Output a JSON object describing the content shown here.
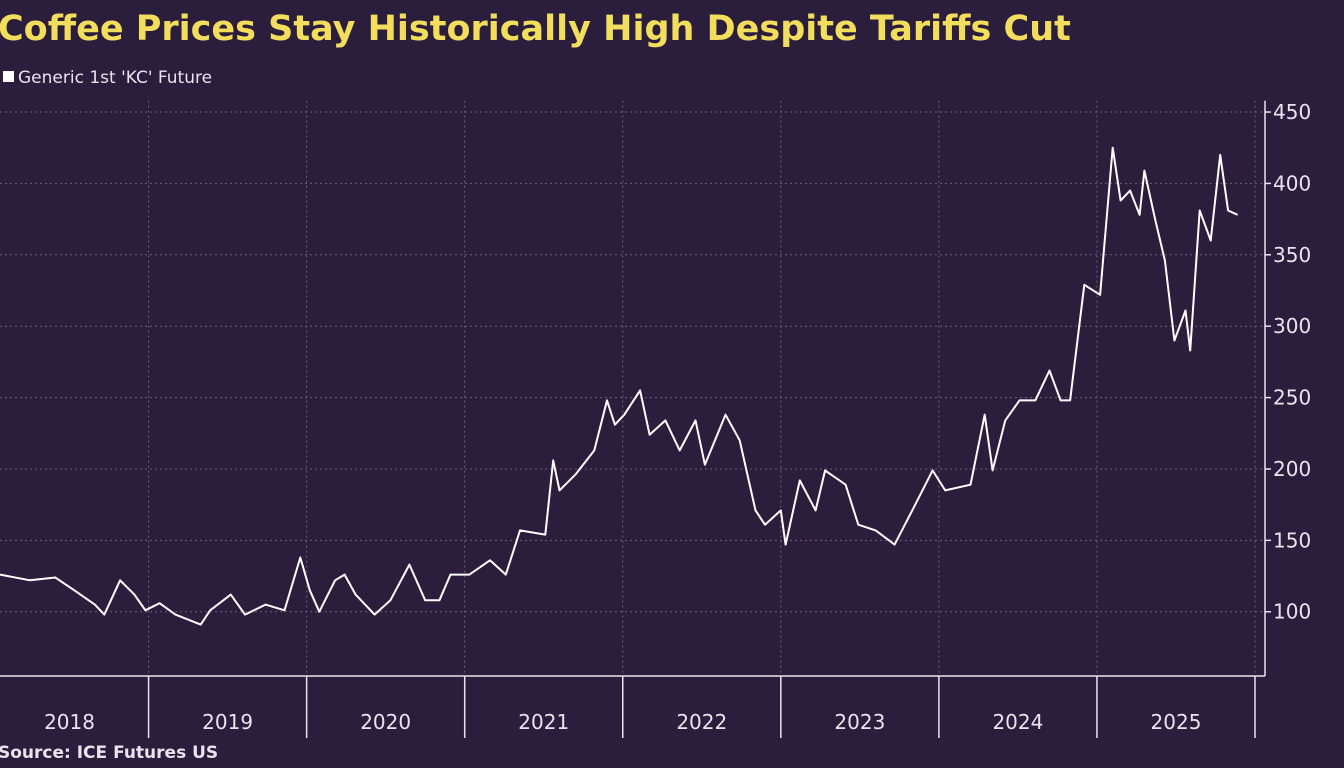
{
  "chart_data": {
    "type": "line",
    "title": "Coffee Prices Stay Historically High Despite Tariffs Cut",
    "source": "Source: ICE Futures US",
    "x": [
      2018.06,
      2018.25,
      2018.41,
      2018.53,
      2018.66,
      2018.72,
      2018.82,
      2018.91,
      2018.98,
      2019.07,
      2019.17,
      2019.33,
      2019.39,
      2019.52,
      2019.61,
      2019.74,
      2019.86,
      2019.96,
      2020.02,
      2020.08,
      2020.18,
      2020.24,
      2020.31,
      2020.43,
      2020.53,
      2020.65,
      2020.75,
      2020.84,
      2020.91,
      2021.03,
      2021.16,
      2021.26,
      2021.35,
      2021.51,
      2021.56,
      2021.6,
      2021.7,
      2021.82,
      2021.9,
      2021.95,
      2022.01,
      2022.11,
      2022.17,
      2022.27,
      2022.36,
      2022.46,
      2022.52,
      2022.65,
      2022.74,
      2022.84,
      2022.9,
      2023.0,
      2023.03,
      2023.12,
      2023.22,
      2023.28,
      2023.41,
      2023.49,
      2023.6,
      2023.72,
      2023.85,
      2023.96,
      2024.04,
      2024.2,
      2024.29,
      2024.34,
      2024.42,
      2024.51,
      2024.61,
      2024.7,
      2024.77,
      2024.83,
      2024.92,
      2025.02,
      2025.1,
      2025.15,
      2025.21,
      2025.27,
      2025.3,
      2025.37,
      2025.43,
      2025.49,
      2025.56,
      2025.59,
      2025.65,
      2025.72,
      2025.78,
      2025.83,
      2025.89
    ],
    "series": [
      {
        "name": "Generic 1st 'KC' Future",
        "color": "#ffffff",
        "values": [
          126,
          122,
          124,
          115,
          105,
          98,
          122,
          112,
          101,
          106,
          98,
          91,
          101,
          112,
          98,
          105,
          101,
          138,
          115,
          100,
          122,
          126,
          112,
          98,
          108,
          133,
          108,
          108,
          126,
          126,
          136,
          126,
          157,
          154,
          206,
          185,
          196,
          213,
          248,
          231,
          238,
          255,
          224,
          234,
          213,
          234,
          203,
          238,
          220,
          171,
          161,
          171,
          147,
          192,
          171,
          199,
          189,
          161,
          157,
          147,
          175,
          199,
          185,
          189,
          238,
          199,
          234,
          248,
          248,
          269,
          248,
          248,
          329,
          322,
          425,
          388,
          395,
          378,
          409,
          374,
          346,
          290,
          311,
          283,
          381,
          360,
          420,
          381,
          378
        ]
      }
    ],
    "ylim": [
      55,
      458
    ],
    "yticks": [
      100,
      150,
      200,
      250,
      300,
      350,
      400,
      450
    ],
    "xlim": [
      2018.06,
      2026.0
    ],
    "xticks": [
      {
        "value": 2018.5,
        "label": "2018"
      },
      {
        "value": 2019.5,
        "label": "2019"
      },
      {
        "value": 2020.5,
        "label": "2020"
      },
      {
        "value": 2021.5,
        "label": "2021"
      },
      {
        "value": 2022.5,
        "label": "2022"
      },
      {
        "value": 2023.5,
        "label": "2023"
      },
      {
        "value": 2024.5,
        "label": "2024"
      },
      {
        "value": 2025.5,
        "label": "2025"
      }
    ],
    "xgrid": [
      2019,
      2020,
      2021,
      2022,
      2023,
      2024,
      2025,
      2026
    ],
    "grid": true
  }
}
